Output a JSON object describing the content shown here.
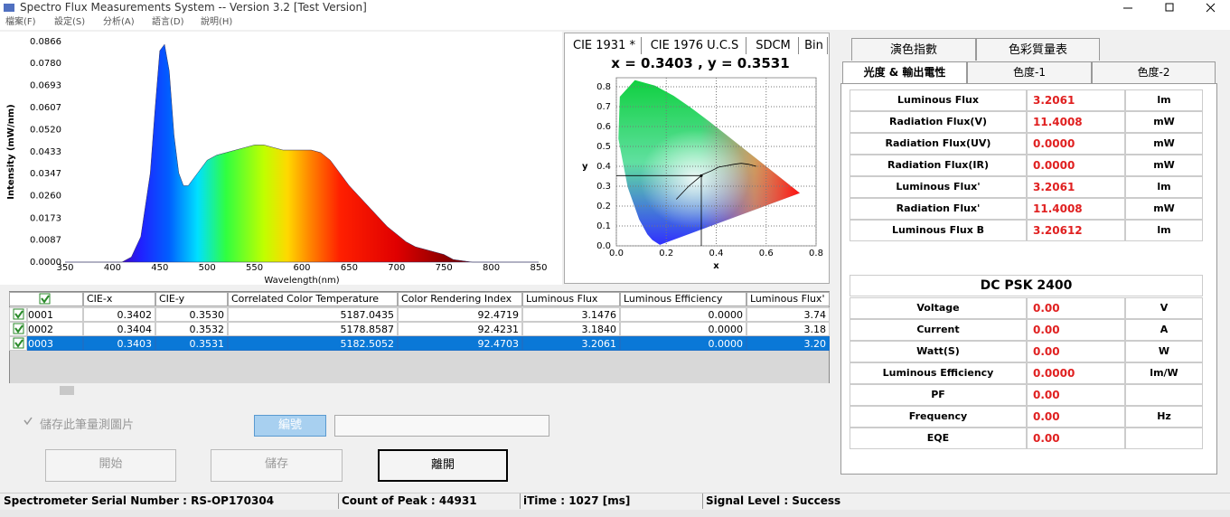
{
  "window_title": "Spectro Flux Measurements System -- Version 3.2  [Test Version]",
  "menu": [
    "檔案(F)",
    "設定(S)",
    "分析(A)",
    "語言(D)",
    "說明(H)"
  ],
  "chart_data": [
    {
      "type": "area",
      "ylabel": "Intensity (mW/nm)",
      "xlabel": "Wavelength(nm)",
      "x": [
        350,
        400,
        410,
        420,
        430,
        440,
        445,
        450,
        455,
        460,
        465,
        470,
        475,
        480,
        490,
        500,
        510,
        520,
        530,
        540,
        550,
        560,
        570,
        580,
        590,
        600,
        610,
        620,
        630,
        640,
        650,
        660,
        670,
        680,
        690,
        700,
        710,
        720,
        730,
        740,
        750,
        760,
        770,
        780,
        850
      ],
      "values": [
        0,
        0,
        0,
        0.002,
        0.01,
        0.035,
        0.06,
        0.083,
        0.0855,
        0.075,
        0.05,
        0.035,
        0.03,
        0.03,
        0.035,
        0.04,
        0.042,
        0.043,
        0.044,
        0.045,
        0.046,
        0.046,
        0.045,
        0.044,
        0.044,
        0.044,
        0.044,
        0.043,
        0.04,
        0.035,
        0.03,
        0.026,
        0.022,
        0.018,
        0.014,
        0.011,
        0.008,
        0.006,
        0.005,
        0.004,
        0.003,
        0.001,
        0.0005,
        0,
        0
      ],
      "xlim": [
        350,
        850
      ],
      "ylim": [
        0,
        0.0866
      ],
      "xticks": [
        350,
        400,
        450,
        500,
        550,
        600,
        650,
        700,
        750,
        800,
        850
      ],
      "yticks": [
        {
          "value": 0,
          "label": "0.0000"
        },
        {
          "value": 0.0087,
          "label": "0.0087"
        },
        {
          "value": 0.0173,
          "label": "0.0173"
        },
        {
          "value": 0.026,
          "label": "0.0260"
        },
        {
          "value": 0.0347,
          "label": "0.0347"
        },
        {
          "value": 0.0433,
          "label": "0.0433"
        },
        {
          "value": 0.052,
          "label": "0.0520"
        },
        {
          "value": 0.0607,
          "label": "0.0607"
        },
        {
          "value": 0.0693,
          "label": "0.0693"
        },
        {
          "value": 0.078,
          "label": "0.0780"
        },
        {
          "value": 0.0866,
          "label": "0.0866"
        }
      ]
    },
    {
      "type": "scatter",
      "tabs": [
        "CIE 1931 *",
        "CIE 1976 U.C.S",
        "SDCM",
        "Bin"
      ],
      "title": "x = 0.3403 , y = 0.3531",
      "xlabel": "x",
      "ylabel": "y",
      "x": [
        0.3403
      ],
      "values": [
        0.3531
      ],
      "xlim": [
        0,
        0.8
      ],
      "ylim": [
        0,
        0.8
      ],
      "grid": true,
      "xticks": [
        {
          "value": 0,
          "label": "0.0"
        },
        {
          "value": 0.2,
          "label": "0.2"
        },
        {
          "value": 0.4,
          "label": "0.4"
        },
        {
          "value": 0.6,
          "label": "0.6"
        },
        {
          "value": 0.8,
          "label": "0.8"
        }
      ],
      "yticks": [
        {
          "value": 0,
          "label": "0.0"
        },
        {
          "value": 0.1,
          "label": "0.1"
        },
        {
          "value": 0.2,
          "label": "0.2"
        },
        {
          "value": 0.3,
          "label": "0.3"
        },
        {
          "value": 0.4,
          "label": "0.4"
        },
        {
          "value": 0.5,
          "label": "0.5"
        },
        {
          "value": 0.6,
          "label": "0.6"
        },
        {
          "value": 0.7,
          "label": "0.7"
        },
        {
          "value": 0.8,
          "label": "0.8"
        }
      ]
    }
  ],
  "table": {
    "columns": [
      "CIE-x",
      "CIE-y",
      "Correlated Color Temperature",
      "Color Rendering Index",
      "Luminous Flux",
      "Luminous Efficiency",
      "Luminous Flux'"
    ],
    "rows": [
      [
        "0001",
        "0.3402",
        "0.3530",
        "5187.0435",
        "92.4719",
        "3.1476",
        "0.0000",
        "3.74"
      ],
      [
        "0002",
        "0.3404",
        "0.3532",
        "5178.8587",
        "92.4231",
        "3.1840",
        "0.0000",
        "3.18"
      ],
      [
        "0003",
        "0.3403",
        "0.3531",
        "5182.5052",
        "92.4703",
        "3.2061",
        "0.0000",
        "3.20"
      ]
    ],
    "selected": 2
  },
  "save_image": "儲存此筆量測圖片",
  "number_button": "編號",
  "buttons": [
    "開始",
    "儲存",
    "離開"
  ],
  "tabs_back": [
    "演色指數",
    "色彩質量表"
  ],
  "tabs_front": [
    "光度 & 輸出電性",
    "色度-1",
    "色度-2"
  ],
  "photometry": [
    {
      "name": "Luminous Flux",
      "value": "3.2061",
      "unit": "lm"
    },
    {
      "name": "Radiation Flux(V)",
      "value": "11.4008",
      "unit": "mW"
    },
    {
      "name": "Radiation Flux(UV)",
      "value": "0.0000",
      "unit": "mW"
    },
    {
      "name": "Radiation Flux(IR)",
      "value": "0.0000",
      "unit": "mW"
    },
    {
      "name": "Luminous Flux'",
      "value": "3.2061",
      "unit": "lm"
    },
    {
      "name": "Radiation Flux'",
      "value": "11.4008",
      "unit": "mW"
    },
    {
      "name": "Luminous Flux B",
      "value": "3.20612",
      "unit": "lm"
    }
  ],
  "power": {
    "title": "DC PSK 2400",
    "rows": [
      {
        "name": "Voltage",
        "value": "0.00",
        "unit": "V"
      },
      {
        "name": "Current",
        "value": "0.00",
        "unit": "A"
      },
      {
        "name": "Watt(S)",
        "value": "0.00",
        "unit": "W"
      },
      {
        "name": "Luminous Efficiency",
        "value": "0.0000",
        "unit": "lm/W"
      },
      {
        "name": "PF",
        "value": "0.00"
      },
      {
        "name": "Frequency",
        "value": "0.00",
        "unit": "Hz"
      },
      {
        "name": "EQE",
        "value": "0.00"
      }
    ]
  },
  "status": [
    "Spectrometer Serial Number : RS-OP170304",
    "Count of Peak :  44931",
    "iTime : 1027 [ms]",
    "Signal Level : Success"
  ]
}
